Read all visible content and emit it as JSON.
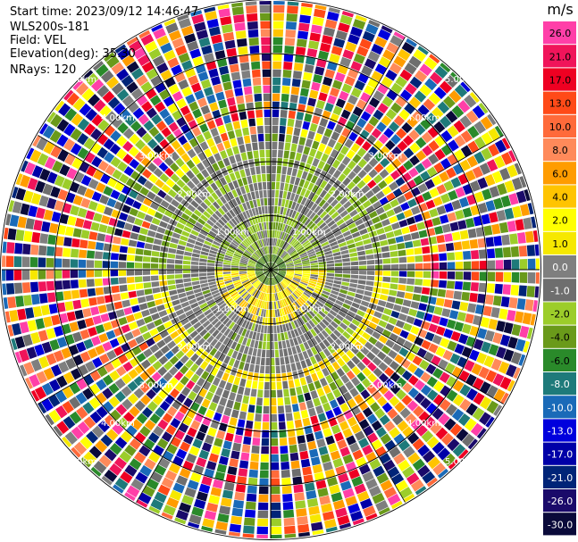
{
  "info": {
    "start_time": "Start time: 2023/09/12 14:46:47",
    "station": "WLS200s-181",
    "field": "Field: VEL",
    "elevation": "Elevation(deg): 35.30",
    "nrays": "NRays: 120"
  },
  "chart_data": {
    "type": "heatmap",
    "projection": "polar PPI",
    "field": "VEL",
    "nrays": 120,
    "range_ring_labels": [
      "1.00km",
      "2.00km",
      "3.00km",
      "4.00km",
      "5.00km"
    ],
    "colorbar": {
      "unit": "m/s",
      "ticks": [
        "26.0",
        "21.0",
        "17.0",
        "13.0",
        "10.0",
        "8.0",
        "6.0",
        "4.0",
        "2.0",
        "1.0",
        "0.0",
        "-1.0",
        "-2.0",
        "-4.0",
        "-6.0",
        "-8.0",
        "-10.0",
        "-13.0",
        "-17.0",
        "-21.0",
        "-26.0",
        "-30.0"
      ],
      "colors": [
        "#ff3fa8",
        "#f0145a",
        "#ee0022",
        "#ff4a18",
        "#ff6a3a",
        "#ff8a5a",
        "#ff9c00",
        "#ffc400",
        "#ffff00",
        "#f6e800",
        "#7f7f7f",
        "#6e6e6e",
        "#9ccd2a",
        "#6a9a1a",
        "#2a8a2a",
        "#1e7a7a",
        "#1a6ab8",
        "#0000dd",
        "#0000a8",
        "#002478",
        "#1a0a6a",
        "#0a0a3a"
      ]
    }
  }
}
